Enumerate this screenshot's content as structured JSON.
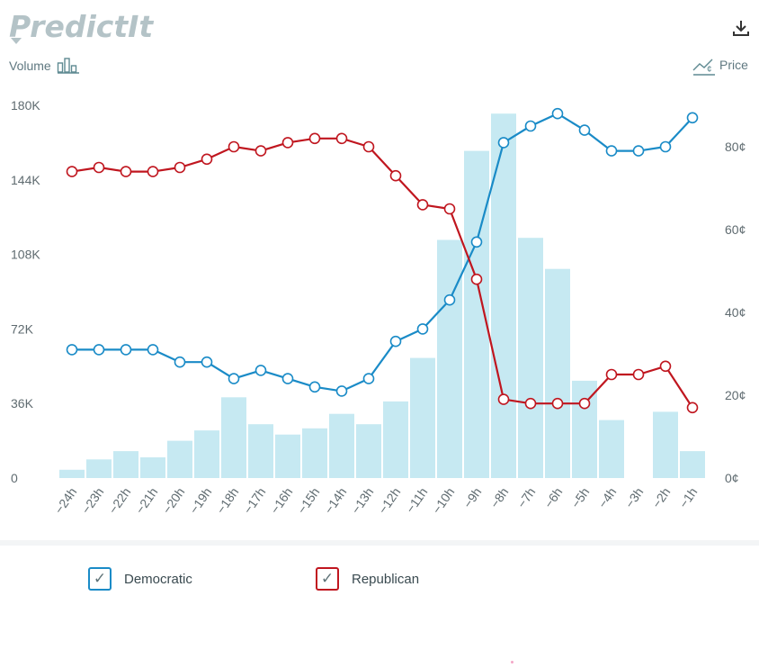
{
  "header": {
    "logo_text": "PredictIt",
    "download_icon": "download-icon",
    "volume_label": "Volume",
    "volume_icon": "bar-chart-icon",
    "price_label": "Price",
    "price_icon": "price-chart-icon"
  },
  "colors": {
    "democratic": "#1a8bc7",
    "republican": "#c0161f",
    "volume_bar": "#c6e9f2",
    "logo": "#b4c3c7"
  },
  "legend": [
    {
      "label": "Democratic",
      "checked": true
    },
    {
      "label": "Republican",
      "checked": true
    }
  ],
  "chart_data": {
    "type": "bar",
    "categories": [
      "−24h",
      "−23h",
      "−22h",
      "−21h",
      "−20h",
      "−19h",
      "−18h",
      "−17h",
      "−16h",
      "−15h",
      "−14h",
      "−13h",
      "−12h",
      "−11h",
      "−10h",
      "−9h",
      "−8h",
      "−7h",
      "−6h",
      "−5h",
      "−4h",
      "−3h",
      "−2h",
      "−1h"
    ],
    "volume": {
      "values": [
        4000,
        9000,
        13000,
        10000,
        18000,
        23000,
        39000,
        26000,
        21000,
        24000,
        31000,
        26000,
        37000,
        58000,
        115000,
        158000,
        176000,
        116000,
        101000,
        47000,
        28000,
        0,
        32000,
        13000
      ],
      "ylim": [
        0,
        180000
      ],
      "ticks": [
        "0",
        "36K",
        "72K",
        "108K",
        "144K",
        "180K"
      ]
    },
    "price": {
      "ylim": [
        0,
        90
      ],
      "ticks": [
        "0¢",
        "20¢",
        "40¢",
        "60¢",
        "80¢"
      ],
      "series": [
        {
          "name": "Democratic",
          "values": [
            31,
            31,
            31,
            31,
            28,
            28,
            24,
            26,
            24,
            22,
            21,
            24,
            33,
            36,
            43,
            57,
            81,
            85,
            88,
            84,
            79,
            79,
            80,
            87
          ]
        },
        {
          "name": "Republican",
          "values": [
            74,
            75,
            74,
            74,
            75,
            77,
            80,
            79,
            81,
            82,
            82,
            80,
            73,
            66,
            65,
            48,
            19,
            18,
            18,
            18,
            25,
            25,
            27,
            17
          ]
        }
      ]
    }
  }
}
